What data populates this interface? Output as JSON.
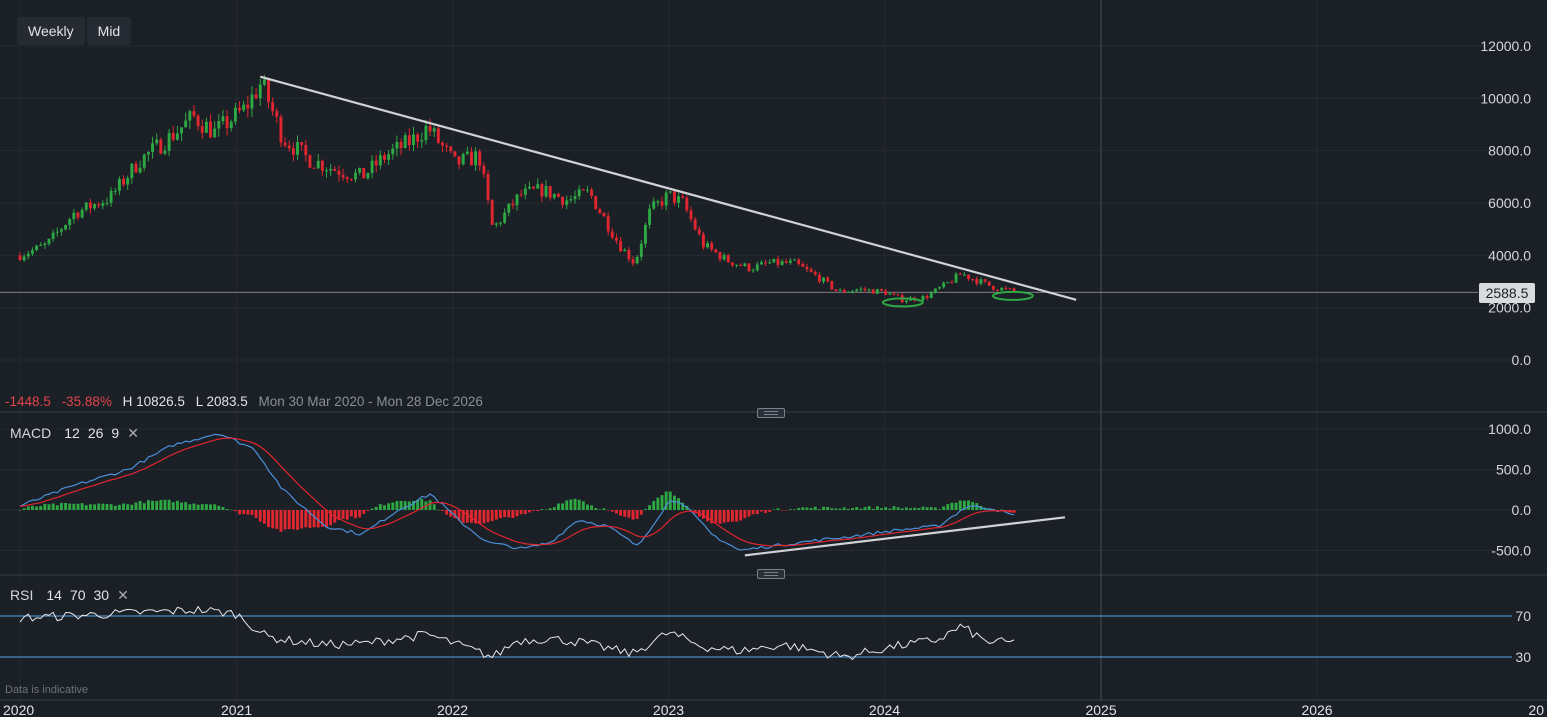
{
  "toolbar": {
    "interval_label": "Weekly",
    "price_type_label": "Mid"
  },
  "stats": {
    "change": "-1448.5",
    "change_pct": "-35.88%",
    "high": "H 10826.5",
    "low": "L 2083.5",
    "range": "Mon 30 Mar 2020 - Mon 28 Dec 2026"
  },
  "last_price": "2588.5",
  "price_axis_labels": [
    "12000.0",
    "10000.0",
    "8000.0",
    "6000.0",
    "4000.0",
    "2000.0",
    "0.0"
  ],
  "time_axis_labels": [
    "2020",
    "2021",
    "2022",
    "2023",
    "2024",
    "2025",
    "2026",
    "20"
  ],
  "macd": {
    "name": "MACD",
    "fast": "12",
    "slow": "26",
    "signal": "9",
    "axis_labels": [
      "1000.0",
      "500.0",
      "0.0",
      "-500.0"
    ]
  },
  "rsi": {
    "name": "RSI",
    "length": "14",
    "upper": "70",
    "lower": "30",
    "axis_labels": [
      "70",
      "30"
    ]
  },
  "disclaimer": "Data is indicative",
  "colors": {
    "up": "#2ea843",
    "down": "#e0262f",
    "macd_line": "#4a90d9",
    "signal_line": "#e0262f",
    "trendline": "#d0d2d6",
    "rsi_line": "#e6e8eb",
    "rsi_band": "#5aa3e6",
    "background": "#1b1f26"
  },
  "chart_data": {
    "type": "candlestick",
    "interval": "Weekly",
    "last_price": 2588.5,
    "high": 10826.5,
    "low": 2083.5,
    "price_ylim": [
      -800,
      13000
    ],
    "price_anchors": [
      [
        "2020-01-01",
        4000
      ],
      [
        "2020-02-15",
        4400
      ],
      [
        "2020-04-01",
        5600
      ],
      [
        "2020-06-01",
        6200
      ],
      [
        "2020-07-20",
        7600
      ],
      [
        "2020-09-15",
        8600
      ],
      [
        "2020-10-20",
        9300
      ],
      [
        "2020-11-25",
        8700
      ],
      [
        "2021-01-15",
        9600
      ],
      [
        "2021-02-12",
        10600
      ],
      [
        "2021-03-20",
        8500
      ],
      [
        "2021-05-01",
        7700
      ],
      [
        "2021-06-15",
        7300
      ],
      [
        "2021-08-01",
        7000
      ],
      [
        "2021-09-10",
        7800
      ],
      [
        "2021-10-25",
        8400
      ],
      [
        "2021-11-20",
        8900
      ],
      [
        "2022-01-05",
        7500
      ],
      [
        "2022-02-15",
        7800
      ],
      [
        "2022-03-10",
        5000
      ],
      [
        "2022-04-25",
        6300
      ],
      [
        "2022-06-01",
        6500
      ],
      [
        "2022-07-15",
        6100
      ],
      [
        "2022-08-20",
        6400
      ],
      [
        "2022-10-10",
        4400
      ],
      [
        "2022-11-05",
        3700
      ],
      [
        "2022-12-01",
        5700
      ],
      [
        "2023-01-01",
        6300
      ],
      [
        "2023-01-25",
        6000
      ],
      [
        "2023-03-01",
        4400
      ],
      [
        "2023-04-10",
        3800
      ],
      [
        "2023-05-20",
        3500
      ],
      [
        "2023-06-20",
        3700
      ],
      [
        "2023-08-01",
        3700
      ],
      [
        "2023-09-15",
        3100
      ],
      [
        "2023-10-15",
        2600
      ],
      [
        "2023-11-20",
        2700
      ],
      [
        "2024-01-01",
        2600
      ],
      [
        "2024-02-01",
        2300
      ],
      [
        "2024-03-10",
        2400
      ],
      [
        "2024-04-15",
        2900
      ],
      [
        "2024-05-10",
        3300
      ],
      [
        "2024-05-30",
        3100
      ],
      [
        "2024-07-01",
        2800
      ],
      [
        "2024-08-10",
        2600
      ]
    ],
    "resistance_trendline": [
      [
        "2021-02-10",
        10826.5
      ],
      [
        "2024-11-20",
        2300
      ]
    ],
    "price_markers": [
      [
        "2024-02-01",
        2200
      ],
      [
        "2024-08-05",
        2450
      ]
    ],
    "macd_ylim": [
      -950,
      1180
    ],
    "macd_anchors": [
      [
        "2020-01-01",
        50
      ],
      [
        "2020-04-01",
        300
      ],
      [
        "2020-07-01",
        500
      ],
      [
        "2020-09-15",
        800
      ],
      [
        "2020-12-01",
        950
      ],
      [
        "2021-02-01",
        750
      ],
      [
        "2021-03-20",
        250
      ],
      [
        "2021-06-01",
        -200
      ],
      [
        "2021-08-01",
        -300
      ],
      [
        "2021-10-01",
        0
      ],
      [
        "2021-11-25",
        200
      ],
      [
        "2022-01-15",
        -150
      ],
      [
        "2022-03-01",
        -400
      ],
      [
        "2022-05-01",
        -480
      ],
      [
        "2022-06-15",
        -400
      ],
      [
        "2022-08-01",
        -120
      ],
      [
        "2022-09-20",
        -200
      ],
      [
        "2022-11-10",
        -450
      ],
      [
        "2023-01-01",
        100
      ],
      [
        "2023-01-20",
        120
      ],
      [
        "2023-03-15",
        -300
      ],
      [
        "2023-05-01",
        -500
      ],
      [
        "2023-06-20",
        -450
      ],
      [
        "2023-09-01",
        -380
      ],
      [
        "2023-11-01",
        -330
      ],
      [
        "2024-01-20",
        -250
      ],
      [
        "2024-04-01",
        -200
      ],
      [
        "2024-05-20",
        50
      ],
      [
        "2024-07-01",
        20
      ],
      [
        "2024-08-10",
        -80
      ]
    ],
    "macd_trendline": [
      [
        "2023-05-10",
        -560
      ],
      [
        "2024-11-01",
        -90
      ]
    ],
    "rsi_ylim": [
      0,
      100
    ],
    "rsi_anchors": [
      [
        "2020-01-01",
        68
      ],
      [
        "2020-06-01",
        72
      ],
      [
        "2020-11-01",
        76
      ],
      [
        "2021-01-01",
        72
      ],
      [
        "2021-02-20",
        50
      ],
      [
        "2021-04-01",
        46
      ],
      [
        "2021-06-01",
        42
      ],
      [
        "2021-08-01",
        43
      ],
      [
        "2021-11-20",
        52
      ],
      [
        "2022-01-20",
        40
      ],
      [
        "2022-03-10",
        30
      ],
      [
        "2022-04-20",
        46
      ],
      [
        "2022-06-15",
        48
      ],
      [
        "2022-08-10",
        44
      ],
      [
        "2022-11-01",
        33
      ],
      [
        "2023-01-01",
        54
      ],
      [
        "2023-03-01",
        40
      ],
      [
        "2023-05-01",
        36
      ],
      [
        "2023-07-15",
        42
      ],
      [
        "2023-09-15",
        35
      ],
      [
        "2023-10-25",
        30
      ],
      [
        "2024-01-15",
        40
      ],
      [
        "2024-04-01",
        47
      ],
      [
        "2024-05-10",
        60
      ],
      [
        "2024-06-20",
        45
      ],
      [
        "2024-08-10",
        44
      ]
    ],
    "rsi_bands": [
      70,
      30
    ]
  }
}
